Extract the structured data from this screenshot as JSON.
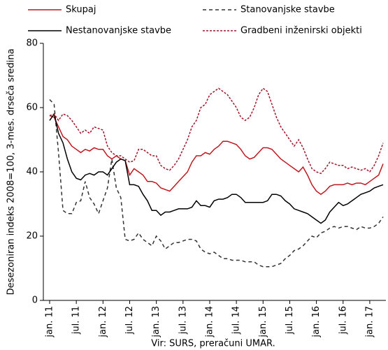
{
  "chart_data": {
    "type": "line",
    "y_label": "Desezoniran indeks 2008=100, 3-mes. drseča sredina",
    "source": "Vir: SURS, preračuni UMAR.",
    "categories": [
      "jan. 11",
      null,
      null,
      null,
      null,
      null,
      "jul. 11",
      null,
      null,
      null,
      null,
      null,
      "jan. 12",
      null,
      null,
      null,
      null,
      null,
      "jul. 12",
      null,
      null,
      null,
      null,
      null,
      "jan. 13",
      null,
      null,
      null,
      null,
      null,
      "jul. 13",
      null,
      null,
      null,
      null,
      null,
      "jan. 14",
      null,
      null,
      null,
      null,
      null,
      "jul. 14",
      null,
      null,
      null,
      null,
      null,
      "jan. 15",
      null,
      null,
      null,
      null,
      null,
      "jul. 15",
      null,
      null,
      null,
      null,
      null,
      "jan. 16",
      null,
      null,
      null,
      null,
      null,
      "jul. 16",
      null,
      null,
      null,
      null,
      null,
      "jan. 17",
      null,
      null,
      null
    ],
    "ylim": [
      0,
      80
    ],
    "yticks": [
      0,
      20,
      40,
      60,
      80
    ],
    "legend": "top",
    "series": [
      {
        "name": "Skupaj",
        "color": "#c0171e",
        "dash": "none",
        "values": [
          57.5,
          57,
          54,
          51,
          50,
          48,
          47,
          46,
          47,
          46.5,
          47.5,
          47,
          47,
          45,
          44,
          45,
          44,
          43.5,
          39,
          41,
          40,
          39,
          37,
          37,
          36.5,
          35,
          34.5,
          34,
          35.5,
          37,
          38.5,
          40,
          43,
          45,
          45,
          46,
          45.5,
          47,
          48,
          49.5,
          49.5,
          49,
          48.5,
          47,
          45,
          44,
          44.5,
          46,
          47.5,
          47.5,
          47,
          45.5,
          44,
          43,
          42,
          41,
          40,
          41.5,
          39,
          36,
          34,
          33,
          34,
          35.5,
          36,
          36,
          36,
          36.5,
          36,
          36.5,
          36.5,
          36,
          37,
          38,
          39,
          42.5
        ]
      },
      {
        "name": "Stanovanjske stavbe",
        "color": "#333333",
        "dash": "5,4",
        "values": [
          62.5,
          61,
          46,
          28,
          27,
          27,
          30.5,
          31,
          37,
          32,
          30,
          27,
          31,
          35,
          44,
          35,
          32,
          19,
          18.5,
          19,
          21,
          19,
          18,
          17,
          20,
          18.5,
          16,
          17,
          18,
          18,
          18.5,
          19,
          19,
          18.5,
          16,
          15,
          14.5,
          15,
          14,
          13,
          13,
          12.5,
          12.5,
          12.5,
          12,
          12,
          12,
          11,
          10.5,
          10.5,
          10.5,
          11,
          11.5,
          13,
          14,
          15.5,
          16,
          17,
          18.5,
          20,
          19.5,
          21,
          21.5,
          22.5,
          23,
          22.5,
          23,
          23,
          22.5,
          22,
          23,
          22.5,
          22.5,
          23,
          24,
          26
        ]
      },
      {
        "name": "Nestanovanjske stavbe",
        "color": "#000000",
        "dash": "none",
        "values": [
          56,
          58,
          52,
          49,
          44,
          40,
          38,
          37.5,
          39,
          39.5,
          39,
          40,
          40,
          39,
          41,
          43,
          44,
          43.5,
          36,
          36,
          35.5,
          33,
          31,
          28,
          28,
          26.5,
          27.5,
          27.5,
          28,
          28.5,
          28.5,
          28.5,
          29,
          31,
          29.5,
          29.5,
          29,
          31,
          31.5,
          31.5,
          32,
          33,
          33,
          32,
          30.5,
          30.5,
          30.5,
          30.5,
          30.5,
          31,
          33,
          33,
          32.5,
          31,
          30,
          28.5,
          28,
          27.5,
          27,
          26,
          25,
          24,
          25,
          27.5,
          29,
          30.5,
          29.5,
          30,
          31,
          32,
          33,
          33.5,
          34,
          35,
          35.5,
          36
        ]
      },
      {
        "name": "Gradbeni inženirski objekti",
        "color": "#a3162a",
        "dash": "3,2",
        "values": [
          57.5,
          58,
          56,
          58,
          57.5,
          56,
          54,
          52,
          53,
          52,
          54,
          53.5,
          53,
          48,
          46,
          45,
          45,
          44,
          43,
          43.5,
          47,
          47,
          46,
          45,
          45,
          42,
          41,
          40.5,
          42,
          44,
          47,
          50,
          54,
          56,
          60,
          61,
          64,
          65,
          66,
          65,
          64,
          62,
          60,
          57,
          56,
          57,
          60,
          64,
          66,
          65,
          61,
          57,
          54,
          52,
          50,
          48,
          50,
          47.5,
          44,
          41,
          40,
          39.5,
          41,
          43,
          42.5,
          42,
          42,
          41,
          41.5,
          41,
          40.5,
          41,
          40,
          42,
          45,
          49
        ]
      }
    ]
  }
}
